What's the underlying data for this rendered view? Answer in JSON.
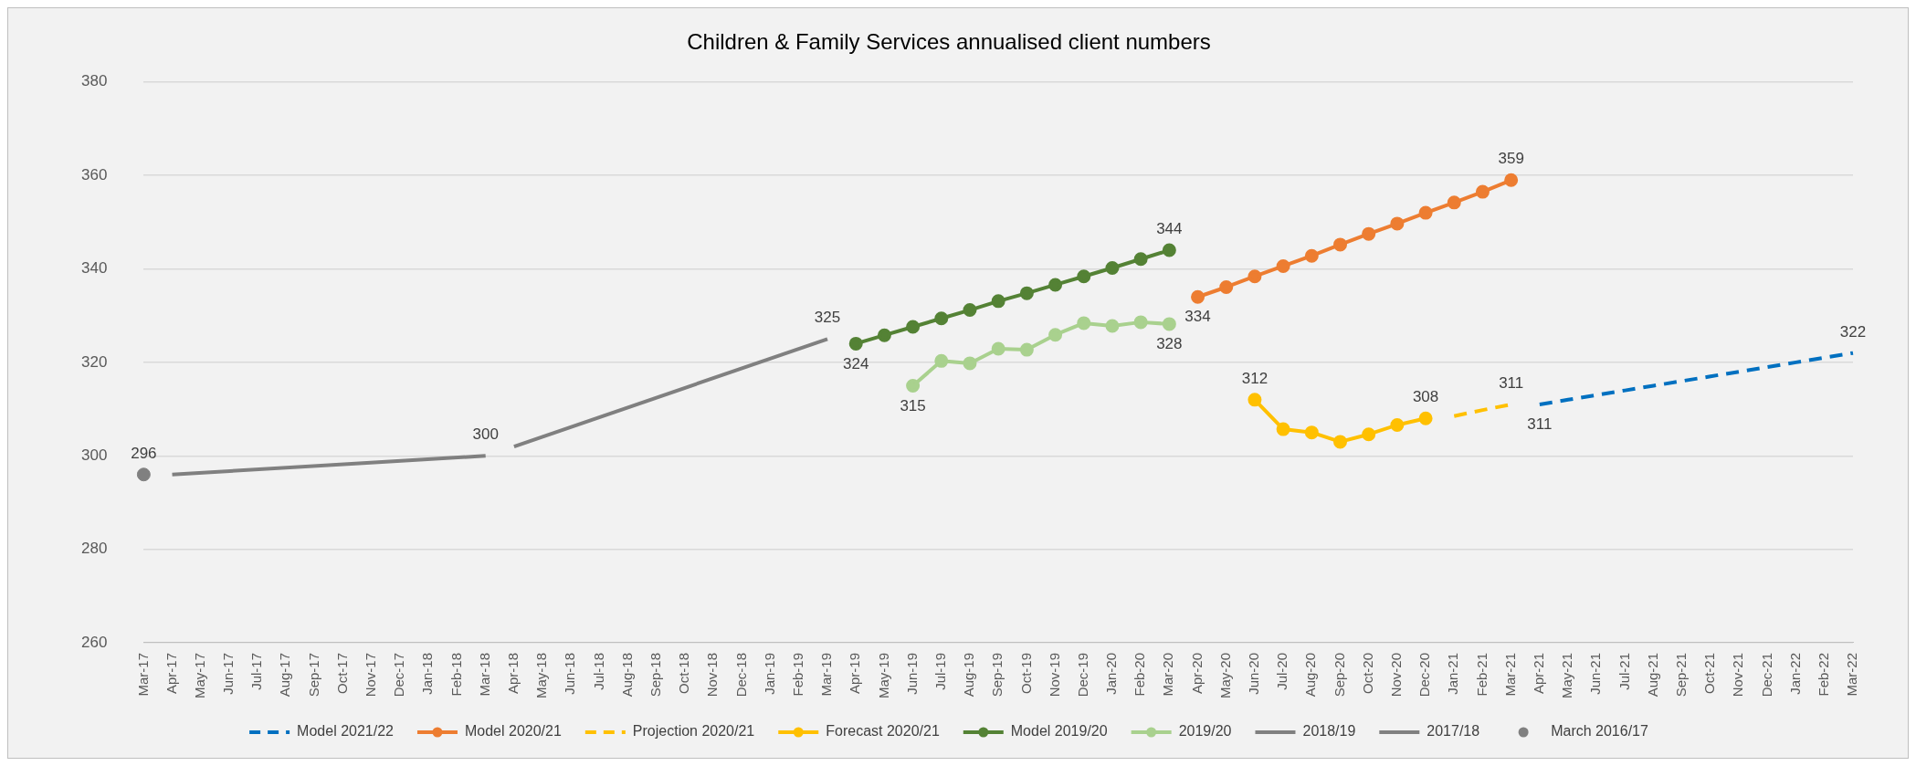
{
  "chart_data": {
    "type": "line",
    "title": "Children & Family Services annualised client numbers",
    "categories": [
      "Mar-17",
      "Apr-17",
      "May-17",
      "Jun-17",
      "Jul-17",
      "Aug-17",
      "Sep-17",
      "Oct-17",
      "Nov-17",
      "Dec-17",
      "Jan-18",
      "Feb-18",
      "Mar-18",
      "Apr-18",
      "May-18",
      "Jun-18",
      "Jul-18",
      "Aug-18",
      "Sep-18",
      "Oct-18",
      "Nov-18",
      "Dec-18",
      "Jan-19",
      "Feb-19",
      "Mar-19",
      "Apr-19",
      "May-19",
      "Jun-19",
      "Jul-19",
      "Aug-19",
      "Sep-19",
      "Oct-19",
      "Nov-19",
      "Dec-19",
      "Jan-20",
      "Feb-20",
      "Mar-20",
      "Apr-20",
      "May-20",
      "Jun-20",
      "Jul-20",
      "Aug-20",
      "Sep-20",
      "Oct-20",
      "Nov-20",
      "Dec-20",
      "Jan-21",
      "Feb-21",
      "Mar-21",
      "Apr-21",
      "May-21",
      "Jun-21",
      "Jul-21",
      "Aug-21",
      "Sep-21",
      "Oct-21",
      "Nov-21",
      "Dec-21",
      "Jan-22",
      "Feb-22",
      "Mar-22"
    ],
    "ylim": [
      260,
      380
    ],
    "yticks": [
      260,
      280,
      300,
      320,
      340,
      360,
      380
    ],
    "grid": "y",
    "legend": "bottom",
    "series": [
      {
        "name": "Model 2021/22",
        "color": "#0070c0",
        "line_style": "dashed",
        "marker": "none",
        "values": [
          null,
          null,
          null,
          null,
          null,
          null,
          null,
          null,
          null,
          null,
          null,
          null,
          null,
          null,
          null,
          null,
          null,
          null,
          null,
          null,
          null,
          null,
          null,
          null,
          null,
          null,
          null,
          null,
          null,
          null,
          null,
          null,
          null,
          null,
          null,
          null,
          null,
          null,
          null,
          null,
          null,
          null,
          null,
          null,
          null,
          null,
          null,
          null,
          null,
          311,
          312,
          313,
          314,
          315,
          316,
          317,
          318,
          319,
          320,
          321,
          322
        ],
        "value_labels": [
          null,
          null,
          null,
          null,
          null,
          null,
          null,
          null,
          null,
          null,
          null,
          null,
          null,
          null,
          null,
          null,
          null,
          null,
          null,
          null,
          null,
          null,
          null,
          null,
          null,
          null,
          null,
          null,
          null,
          null,
          null,
          null,
          null,
          null,
          null,
          null,
          null,
          null,
          null,
          null,
          null,
          null,
          null,
          null,
          null,
          null,
          null,
          null,
          null,
          "311",
          null,
          null,
          null,
          null,
          null,
          null,
          null,
          null,
          null,
          null,
          "322"
        ]
      },
      {
        "name": "Model 2020/21",
        "color": "#ed7d31",
        "line_style": "solid",
        "marker": "circle",
        "values": [
          null,
          null,
          null,
          null,
          null,
          null,
          null,
          null,
          null,
          null,
          null,
          null,
          null,
          null,
          null,
          null,
          null,
          null,
          null,
          null,
          null,
          null,
          null,
          null,
          null,
          null,
          null,
          null,
          null,
          null,
          null,
          null,
          null,
          null,
          null,
          null,
          null,
          334,
          336.1,
          338.4,
          340.6,
          342.8,
          345.2,
          347.5,
          349.7,
          352,
          354.2,
          356.5,
          359,
          null,
          null,
          null,
          null,
          null,
          null,
          null,
          null,
          null,
          null,
          null,
          null
        ],
        "value_labels": [
          null,
          null,
          null,
          null,
          null,
          null,
          null,
          null,
          null,
          null,
          null,
          null,
          null,
          null,
          null,
          null,
          null,
          null,
          null,
          null,
          null,
          null,
          null,
          null,
          null,
          null,
          null,
          null,
          null,
          null,
          null,
          null,
          null,
          null,
          null,
          null,
          null,
          "334",
          null,
          null,
          null,
          null,
          null,
          null,
          null,
          null,
          null,
          null,
          "359",
          null,
          null,
          null,
          null,
          null,
          null,
          null,
          null,
          null,
          null,
          null,
          null
        ]
      },
      {
        "name": "Projection 2020/21",
        "color": "#ffc000",
        "line_style": "dashed",
        "marker": "none",
        "values": [
          null,
          null,
          null,
          null,
          null,
          null,
          null,
          null,
          null,
          null,
          null,
          null,
          null,
          null,
          null,
          null,
          null,
          null,
          null,
          null,
          null,
          null,
          null,
          null,
          null,
          null,
          null,
          null,
          null,
          null,
          null,
          null,
          null,
          null,
          null,
          null,
          null,
          null,
          null,
          null,
          null,
          null,
          null,
          null,
          null,
          null,
          308.5,
          309.8,
          311,
          null,
          null,
          null,
          null,
          null,
          null,
          null,
          null,
          null,
          null,
          null,
          null
        ],
        "value_labels": [
          null,
          null,
          null,
          null,
          null,
          null,
          null,
          null,
          null,
          null,
          null,
          null,
          null,
          null,
          null,
          null,
          null,
          null,
          null,
          null,
          null,
          null,
          null,
          null,
          null,
          null,
          null,
          null,
          null,
          null,
          null,
          null,
          null,
          null,
          null,
          null,
          null,
          null,
          null,
          null,
          null,
          null,
          null,
          null,
          null,
          null,
          null,
          null,
          "311",
          null,
          null,
          null,
          null,
          null,
          null,
          null,
          null,
          null,
          null,
          null,
          null
        ]
      },
      {
        "name": "Forecast 2020/21",
        "color": "#ffc000",
        "line_style": "solid",
        "marker": "circle",
        "values": [
          null,
          null,
          null,
          null,
          null,
          null,
          null,
          null,
          null,
          null,
          null,
          null,
          null,
          null,
          null,
          null,
          null,
          null,
          null,
          null,
          null,
          null,
          null,
          null,
          null,
          null,
          null,
          null,
          null,
          null,
          null,
          null,
          null,
          null,
          null,
          null,
          null,
          null,
          null,
          312,
          305.7,
          305,
          303,
          304.6,
          306.6,
          308,
          null,
          null,
          null,
          null,
          null,
          null,
          null,
          null,
          null,
          null,
          null,
          null,
          null,
          null,
          null
        ],
        "value_labels": [
          null,
          null,
          null,
          null,
          null,
          null,
          null,
          null,
          null,
          null,
          null,
          null,
          null,
          null,
          null,
          null,
          null,
          null,
          null,
          null,
          null,
          null,
          null,
          null,
          null,
          null,
          null,
          null,
          null,
          null,
          null,
          null,
          null,
          null,
          null,
          null,
          null,
          null,
          null,
          "312",
          null,
          null,
          null,
          null,
          null,
          "308",
          null,
          null,
          null,
          null,
          null,
          null,
          null,
          null,
          null,
          null,
          null,
          null,
          null,
          null,
          null
        ]
      },
      {
        "name": "Model 2019/20",
        "color": "#548235",
        "line_style": "solid",
        "marker": "circle",
        "values": [
          null,
          null,
          null,
          null,
          null,
          null,
          null,
          null,
          null,
          null,
          null,
          null,
          null,
          null,
          null,
          null,
          null,
          null,
          null,
          null,
          null,
          null,
          null,
          null,
          null,
          324,
          325.8,
          327.6,
          329.4,
          331.2,
          333.1,
          334.8,
          336.6,
          338.4,
          340.2,
          342.1,
          344,
          null,
          null,
          null,
          null,
          null,
          null,
          null,
          null,
          null,
          null,
          null,
          null,
          null,
          null,
          null,
          null,
          null,
          null,
          null,
          null,
          null,
          null,
          null,
          null
        ],
        "value_labels": [
          null,
          null,
          null,
          null,
          null,
          null,
          null,
          null,
          null,
          null,
          null,
          null,
          null,
          null,
          null,
          null,
          null,
          null,
          null,
          null,
          null,
          null,
          null,
          null,
          null,
          "324",
          null,
          null,
          null,
          null,
          null,
          null,
          null,
          null,
          null,
          null,
          "344",
          null,
          null,
          null,
          null,
          null,
          null,
          null,
          null,
          null,
          null,
          null,
          null,
          null,
          null,
          null,
          null,
          null,
          null,
          null,
          null,
          null,
          null,
          null,
          null
        ]
      },
      {
        "name": "2019/20",
        "color": "#a9d18e",
        "line_style": "solid",
        "marker": "circle",
        "values": [
          null,
          null,
          null,
          null,
          null,
          null,
          null,
          null,
          null,
          null,
          null,
          null,
          null,
          null,
          null,
          null,
          null,
          null,
          null,
          null,
          null,
          null,
          null,
          null,
          null,
          null,
          null,
          315,
          320.3,
          319.8,
          322.9,
          322.7,
          325.9,
          328.4,
          327.8,
          328.6,
          328.2,
          null,
          null,
          null,
          null,
          null,
          null,
          null,
          null,
          null,
          null,
          null,
          null,
          null,
          null,
          null,
          null,
          null,
          null,
          null,
          null,
          null,
          null,
          null,
          null
        ],
        "value_labels": [
          null,
          null,
          null,
          null,
          null,
          null,
          null,
          null,
          null,
          null,
          null,
          null,
          null,
          null,
          null,
          null,
          null,
          null,
          null,
          null,
          null,
          null,
          null,
          null,
          null,
          null,
          null,
          "315",
          null,
          null,
          null,
          null,
          null,
          null,
          null,
          null,
          "328",
          null,
          null,
          null,
          null,
          null,
          null,
          null,
          null,
          null,
          null,
          null,
          null,
          null,
          null,
          null,
          null,
          null,
          null,
          null,
          null,
          null,
          null,
          null,
          null
        ]
      },
      {
        "name": "2018/19",
        "color": "#808080",
        "line_style": "solid",
        "marker": "none",
        "values": [
          null,
          null,
          null,
          null,
          null,
          null,
          null,
          null,
          null,
          null,
          null,
          null,
          null,
          302,
          null,
          null,
          null,
          null,
          null,
          null,
          null,
          null,
          null,
          null,
          325,
          null,
          null,
          null,
          null,
          null,
          null,
          null,
          null,
          null,
          null,
          null,
          null,
          null,
          null,
          null,
          null,
          null,
          null,
          null,
          null,
          null,
          null,
          null,
          null,
          null,
          null,
          null,
          null,
          null,
          null,
          null,
          null,
          null,
          null,
          null,
          null
        ],
        "value_labels": [
          null,
          null,
          null,
          null,
          null,
          null,
          null,
          null,
          null,
          null,
          null,
          null,
          null,
          null,
          null,
          null,
          null,
          null,
          null,
          null,
          null,
          null,
          null,
          null,
          "325",
          null,
          null,
          null,
          null,
          null,
          null,
          null,
          null,
          null,
          null,
          null,
          null,
          null,
          null,
          null,
          null,
          null,
          null,
          null,
          null,
          null,
          null,
          null,
          null,
          null,
          null,
          null,
          null,
          null,
          null,
          null,
          null,
          null,
          null,
          null,
          null
        ]
      },
      {
        "name": "2017/18",
        "color": "#808080",
        "line_style": "solid",
        "marker": "none",
        "values": [
          null,
          296,
          null,
          null,
          null,
          null,
          null,
          null,
          null,
          null,
          null,
          null,
          300,
          null,
          null,
          null,
          null,
          null,
          null,
          null,
          null,
          null,
          null,
          null,
          null,
          null,
          null,
          null,
          null,
          null,
          null,
          null,
          null,
          null,
          null,
          null,
          null,
          null,
          null,
          null,
          null,
          null,
          null,
          null,
          null,
          null,
          null,
          null,
          null,
          null,
          null,
          null,
          null,
          null,
          null,
          null,
          null,
          null,
          null,
          null,
          null
        ],
        "value_labels": [
          null,
          null,
          null,
          null,
          null,
          null,
          null,
          null,
          null,
          null,
          null,
          null,
          "300",
          null,
          null,
          null,
          null,
          null,
          null,
          null,
          null,
          null,
          null,
          null,
          null,
          null,
          null,
          null,
          null,
          null,
          null,
          null,
          null,
          null,
          null,
          null,
          null,
          null,
          null,
          null,
          null,
          null,
          null,
          null,
          null,
          null,
          null,
          null,
          null,
          null,
          null,
          null,
          null,
          null,
          null,
          null,
          null,
          null,
          null,
          null,
          null
        ]
      },
      {
        "name": "March 2016/17",
        "color": "#808080",
        "type": "scatter",
        "marker": "circle",
        "values": [
          296,
          null,
          null,
          null,
          null,
          null,
          null,
          null,
          null,
          null,
          null,
          null,
          null,
          null,
          null,
          null,
          null,
          null,
          null,
          null,
          null,
          null,
          null,
          null,
          null,
          null,
          null,
          null,
          null,
          null,
          null,
          null,
          null,
          null,
          null,
          null,
          null,
          null,
          null,
          null,
          null,
          null,
          null,
          null,
          null,
          null,
          null,
          null,
          null,
          null,
          null,
          null,
          null,
          null,
          null,
          null,
          null,
          null,
          null,
          null,
          null
        ],
        "value_labels": [
          "296",
          null,
          null,
          null,
          null,
          null,
          null,
          null,
          null,
          null,
          null,
          null,
          null,
          null,
          null,
          null,
          null,
          null,
          null,
          null,
          null,
          null,
          null,
          null,
          null,
          null,
          null,
          null,
          null,
          null,
          null,
          null,
          null,
          null,
          null,
          null,
          null,
          null,
          null,
          null,
          null,
          null,
          null,
          null,
          null,
          null,
          null,
          null,
          null,
          null,
          null,
          null,
          null,
          null,
          null,
          null,
          null,
          null,
          null,
          null,
          null
        ]
      }
    ]
  }
}
